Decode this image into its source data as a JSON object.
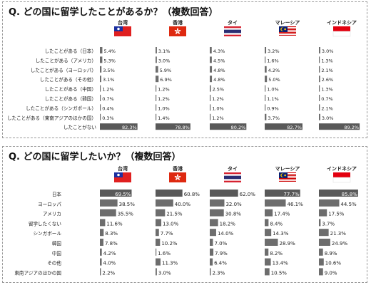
{
  "colors": {
    "bar": "#6d6d6d",
    "bar_highlight": "#595959",
    "text": "#222222",
    "taiwan_red": "#e02020",
    "taiwan_blue": "#1b2fa0",
    "hongkong_red": "#de2910",
    "thai_red": "#d62230",
    "thai_blue": "#2a2d72",
    "malaysia_red": "#cc0000",
    "malaysia_blue": "#0b1f72",
    "malaysia_yellow": "#f5c400",
    "indonesia_red": "#e3000f"
  },
  "chart_data": [
    {
      "type": "bar",
      "title": "Q. どの国に留学したことがあるか？（複数回答）",
      "xlim": [
        0,
        100
      ],
      "countries": [
        {
          "name": "台湾",
          "flag": "taiwan-flag-icon"
        },
        {
          "name": "香港",
          "flag": "hongkong-flag-icon"
        },
        {
          "name": "タイ",
          "flag": "thailand-flag-icon"
        },
        {
          "name": "マレーシア",
          "flag": "malaysia-flag-icon"
        },
        {
          "name": "インドネシア",
          "flag": "indonesia-flag-icon"
        }
      ],
      "categories": [
        "したことがある（日本）",
        "したことがある（アメリカ）",
        "したことがある（ヨーロッパ）",
        "したことがある（その他）",
        "したことがある（中国）",
        "したことがある（韓国）",
        "したことがある（シンガポール）",
        "したことがある（東南アジアのほかの国）",
        "したことがない"
      ],
      "series": [
        {
          "name": "台湾",
          "values": [
            5.4,
            5.3,
            3.5,
            3.1,
            1.2,
            0.7,
            0.4,
            0.3,
            82.3
          ]
        },
        {
          "name": "香港",
          "values": [
            3.1,
            3.0,
            5.9,
            6.9,
            1.2,
            1.2,
            1.0,
            1.4,
            78.8
          ]
        },
        {
          "name": "タイ",
          "values": [
            4.3,
            4.5,
            4.8,
            4.8,
            2.5,
            1.2,
            1.0,
            1.2,
            80.2
          ]
        },
        {
          "name": "マレーシア",
          "values": [
            3.2,
            1.6,
            4.2,
            5.0,
            1.0,
            1.1,
            0.9,
            3.7,
            82.7
          ]
        },
        {
          "name": "インドネシア",
          "values": [
            3.0,
            1.3,
            2.1,
            2.6,
            1.3,
            0.7,
            2.1,
            3.0,
            89.2
          ]
        }
      ]
    },
    {
      "type": "bar",
      "title": "Q. どの国に留学したいか？（複数回答）",
      "xlim": [
        0,
        100
      ],
      "countries": [
        {
          "name": "台湾",
          "flag": "taiwan-flag-icon"
        },
        {
          "name": "香港",
          "flag": "hongkong-flag-icon"
        },
        {
          "name": "タイ",
          "flag": "thailand-flag-icon"
        },
        {
          "name": "マレーシア",
          "flag": "malaysia-flag-icon"
        },
        {
          "name": "インドネシア",
          "flag": "indonesia-flag-icon"
        }
      ],
      "categories": [
        "日本",
        "ヨーロッパ",
        "アメリカ",
        "留学したくない",
        "シンガポール",
        "韓国",
        "中国",
        "その他",
        "東南アジアのほかの国"
      ],
      "series": [
        {
          "name": "台湾",
          "values": [
            69.5,
            38.5,
            35.5,
            11.6,
            8.3,
            7.8,
            4.2,
            4.0,
            2.2
          ]
        },
        {
          "name": "香港",
          "values": [
            60.8,
            40.0,
            21.5,
            13.0,
            7.7,
            10.2,
            1.6,
            11.3,
            3.0
          ]
        },
        {
          "name": "タイ",
          "values": [
            62.0,
            32.0,
            30.8,
            18.2,
            14.0,
            7.0,
            7.9,
            6.4,
            2.3
          ]
        },
        {
          "name": "マレーシア",
          "values": [
            77.7,
            46.1,
            17.4,
            8.4,
            14.3,
            28.9,
            8.2,
            13.4,
            10.5
          ]
        },
        {
          "name": "インドネシア",
          "values": [
            85.8,
            44.5,
            17.5,
            3.7,
            21.3,
            24.9,
            8.9,
            10.6,
            9.0
          ]
        }
      ]
    }
  ]
}
